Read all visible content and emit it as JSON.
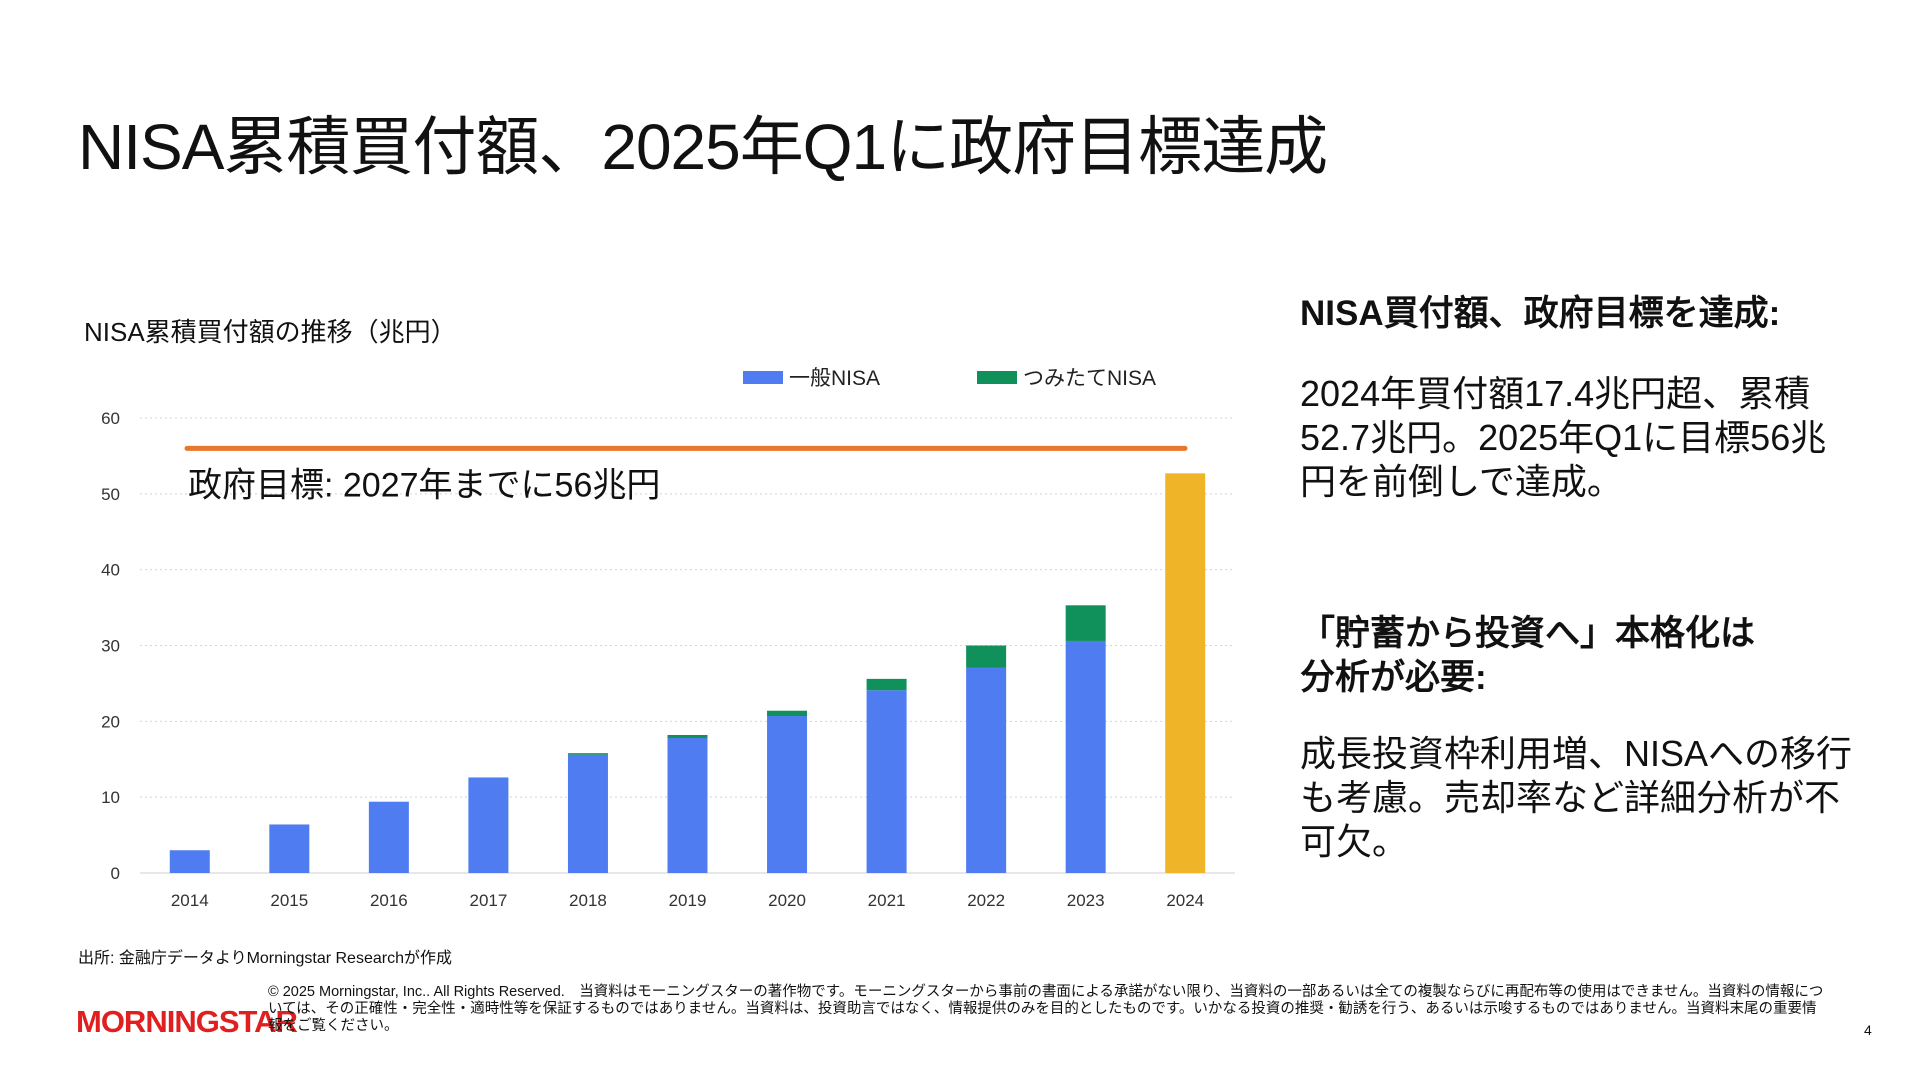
{
  "page": {
    "title": "NISA累積買付額、2025年Q1に政府目標達成",
    "source": "出所: 金融庁データよりMorningstar Researchが作成",
    "logo": "MORNINGSTAR",
    "copyright": "© 2025 Morningstar, Inc.. All Rights Reserved.　当資料はモーニングスターの著作物です。モーニングスターから事前の書面による承諾がない限り、当資料の一部あるいは全ての複製ならびに再配布等の使用はできません。当資料の情報については、その正確性・完全性・適時性等を保証するものではありません。当資料は、投資助言ではなく、情報提供のみを目的としたものです。いかなる投資の推奨・勧誘を行う、あるいは示唆するものではありません。当資料末尾の重要情報をご覧ください。",
    "page_number": "4"
  },
  "right": {
    "h1": "NISA買付額、政府目標を達成:",
    "p1": "2024年買付額17.4兆円超、累積52.7兆円。2025年Q1に目標56兆円を前倒しで達成。",
    "h2": "「貯蓄から投資へ」本格化は分析が必要:",
    "p2": "成長投資枠利用増、NISAへの移行も考慮。売却率など詳細分析が不可欠。"
  },
  "chart_data": {
    "type": "bar",
    "stacked": true,
    "title": "NISA累積買付額の推移（兆円）",
    "categories": [
      "2014",
      "2015",
      "2016",
      "2017",
      "2018",
      "2019",
      "2020",
      "2021",
      "2022",
      "2023",
      "2024"
    ],
    "series": [
      {
        "name": "一般NISA",
        "color": "#4f7cf0",
        "values": [
          3.0,
          6.4,
          9.4,
          12.6,
          15.6,
          17.8,
          20.7,
          24.1,
          27.1,
          30.6,
          null
        ]
      },
      {
        "name": "つみたてNISA",
        "color": "#10905a",
        "values": [
          0,
          0,
          0,
          0,
          0.2,
          0.4,
          0.7,
          1.5,
          2.9,
          4.7,
          null
        ]
      }
    ],
    "total_2024": {
      "value": 52.7,
      "color": "#f0b428"
    },
    "target": {
      "value": 56,
      "label": "政府目標: 2027年までに56兆円",
      "color": "#e8772e"
    },
    "ylim": [
      0,
      60
    ],
    "yticks": [
      0,
      10,
      20,
      30,
      40,
      50,
      60
    ],
    "grid": true,
    "legend": "top"
  }
}
